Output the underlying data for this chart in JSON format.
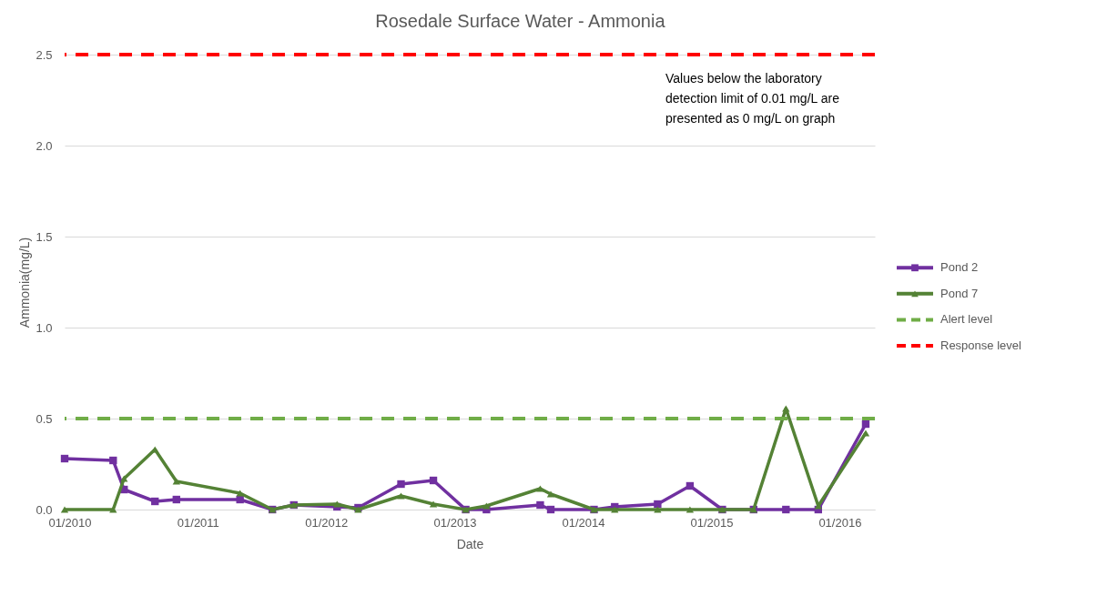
{
  "chart_data": {
    "type": "line",
    "title": "Rosedale Surface Water - Ammonia",
    "xlabel": "Date",
    "ylabel": "Ammonia(mg/L)",
    "x": [
      "2009-12-18",
      "2010-05-05",
      "2010-06-05",
      "2010-09-01",
      "2010-11-01",
      "2011-05-01",
      "2011-08-01",
      "2011-10-01",
      "2012-02-01",
      "2012-04-01",
      "2012-08-01",
      "2012-11-01",
      "2013-02-01",
      "2013-04-01",
      "2013-09-01",
      "2013-10-01",
      "2014-02-01",
      "2014-04-01",
      "2014-08-01",
      "2014-11-01",
      "2015-02-01",
      "2015-05-01",
      "2015-08-01",
      "2015-11-01",
      "2016-03-15"
    ],
    "series": [
      {
        "name": "Pond 2",
        "color": "#7030a0",
        "marker": "square",
        "values": [
          0.28,
          0.27,
          0.11,
          0.045,
          0.055,
          0.055,
          0,
          0.025,
          0.015,
          0.01,
          0.14,
          0.16,
          0,
          0,
          0.025,
          0,
          0,
          0.015,
          0.03,
          0.13,
          0,
          0,
          0,
          0,
          0.47
        ]
      },
      {
        "name": "Pond 7",
        "color": "#548235",
        "marker": "triangle",
        "values": [
          0,
          0,
          0.17,
          0.33,
          0.155,
          0.09,
          0,
          0.025,
          0.03,
          0,
          0.075,
          0.03,
          0,
          0.02,
          0.115,
          0.085,
          0,
          0,
          0,
          0,
          0,
          0,
          0.555,
          0.02,
          0.42
        ]
      }
    ],
    "ref_lines": [
      {
        "axis": "y",
        "value": 0.5,
        "label": "Alert level",
        "color": "#70ad47",
        "line_style": "dashed"
      },
      {
        "axis": "y",
        "value": 2.5,
        "label": "Response level",
        "color": "#ff0000",
        "line_style": "dashed"
      }
    ],
    "annotations": [
      "Values below the laboratory\ndetection limit of 0.01 mg/L are\npresented as 0 mg/L on graph"
    ],
    "xlim": [
      "2009-12-18",
      "2016-04-10"
    ],
    "xticks": [
      {
        "value": "2010-01-01",
        "label": "01/2010"
      },
      {
        "value": "2011-01-01",
        "label": "01/2011"
      },
      {
        "value": "2012-01-01",
        "label": "01/2012"
      },
      {
        "value": "2013-01-01",
        "label": "01/2013"
      },
      {
        "value": "2014-01-01",
        "label": "01/2014"
      },
      {
        "value": "2015-01-01",
        "label": "01/2015"
      },
      {
        "value": "2016-01-01",
        "label": "01/2016"
      }
    ],
    "ylim": [
      0,
      2.5
    ],
    "yticks": [
      {
        "value": 0,
        "label": "0.0"
      },
      {
        "value": 0.5,
        "label": "0.5"
      },
      {
        "value": 1,
        "label": "1.0"
      },
      {
        "value": 1.5,
        "label": "1.5"
      },
      {
        "value": 2,
        "label": "2.0"
      },
      {
        "value": 2.5,
        "label": "2.5"
      }
    ],
    "grid": "y",
    "legend": "right",
    "line_style": "solid"
  }
}
